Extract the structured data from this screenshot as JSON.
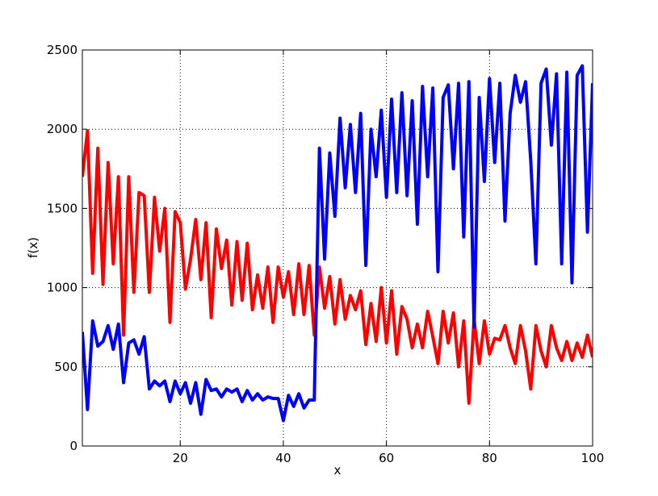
{
  "chart_data": {
    "type": "line",
    "xlabel": "x",
    "ylabel": "f(x)",
    "x": [
      1,
      2,
      3,
      4,
      5,
      6,
      7,
      8,
      9,
      10,
      11,
      12,
      13,
      14,
      15,
      16,
      17,
      18,
      19,
      20,
      21,
      22,
      23,
      24,
      25,
      26,
      27,
      28,
      29,
      30,
      31,
      32,
      33,
      34,
      35,
      36,
      37,
      38,
      39,
      40,
      41,
      42,
      43,
      44,
      45,
      46,
      47,
      48,
      49,
      50,
      51,
      52,
      53,
      54,
      55,
      56,
      57,
      58,
      59,
      60,
      61,
      62,
      63,
      64,
      65,
      66,
      67,
      68,
      69,
      70,
      71,
      72,
      73,
      74,
      75,
      76,
      77,
      78,
      79,
      80,
      81,
      82,
      83,
      84,
      85,
      86,
      87,
      88,
      89,
      90,
      91,
      92,
      93,
      94,
      95,
      96,
      97,
      98,
      99,
      100
    ],
    "series": [
      {
        "name": "red",
        "color": "#ff0000",
        "values": [
          1700,
          1990,
          1090,
          1880,
          1020,
          1790,
          1150,
          1700,
          700,
          1700,
          970,
          1600,
          1580,
          970,
          1570,
          1230,
          1500,
          780,
          1480,
          1410,
          990,
          1180,
          1430,
          1050,
          1410,
          810,
          1370,
          1120,
          1300,
          890,
          1290,
          920,
          1280,
          860,
          1080,
          870,
          1130,
          780,
          1130,
          940,
          1100,
          830,
          1150,
          830,
          1140,
          700,
          1130,
          870,
          1070,
          770,
          1050,
          800,
          950,
          860,
          980,
          640,
          900,
          660,
          1000,
          650,
          980,
          580,
          880,
          800,
          620,
          770,
          620,
          850,
          690,
          520,
          850,
          650,
          840,
          500,
          790,
          270,
          800,
          520,
          790,
          580,
          680,
          670,
          760,
          620,
          520,
          760,
          600,
          360,
          760,
          600,
          500,
          760,
          620,
          540,
          660,
          540,
          650,
          560,
          700,
          560
        ]
      },
      {
        "name": "blue",
        "color": "#0000ff",
        "values": [
          720,
          230,
          790,
          630,
          660,
          760,
          610,
          770,
          400,
          650,
          670,
          580,
          690,
          360,
          410,
          380,
          410,
          280,
          410,
          330,
          400,
          270,
          400,
          200,
          420,
          350,
          360,
          310,
          360,
          340,
          360,
          280,
          350,
          290,
          330,
          290,
          310,
          300,
          300,
          160,
          320,
          250,
          330,
          240,
          290,
          290,
          1880,
          1180,
          1850,
          1450,
          2070,
          1630,
          2030,
          1600,
          2100,
          1140,
          2000,
          1700,
          2120,
          1570,
          2190,
          1600,
          2230,
          1580,
          2180,
          1400,
          2270,
          1700,
          2260,
          1100,
          2200,
          2280,
          1750,
          2290,
          1320,
          2300,
          750,
          2200,
          1670,
          2320,
          1790,
          2290,
          1420,
          2100,
          2340,
          2170,
          2300,
          1800,
          1150,
          2290,
          2380,
          1900,
          2350,
          1150,
          2360,
          1030,
          2340,
          2400,
          1350,
          2290
        ]
      }
    ],
    "xlim": [
      1,
      100
    ],
    "ylim": [
      0,
      2500
    ],
    "xticks": [
      20,
      40,
      60,
      80,
      100
    ],
    "yticks": [
      0,
      500,
      1000,
      1500,
      2000,
      2500
    ],
    "grid": true
  }
}
